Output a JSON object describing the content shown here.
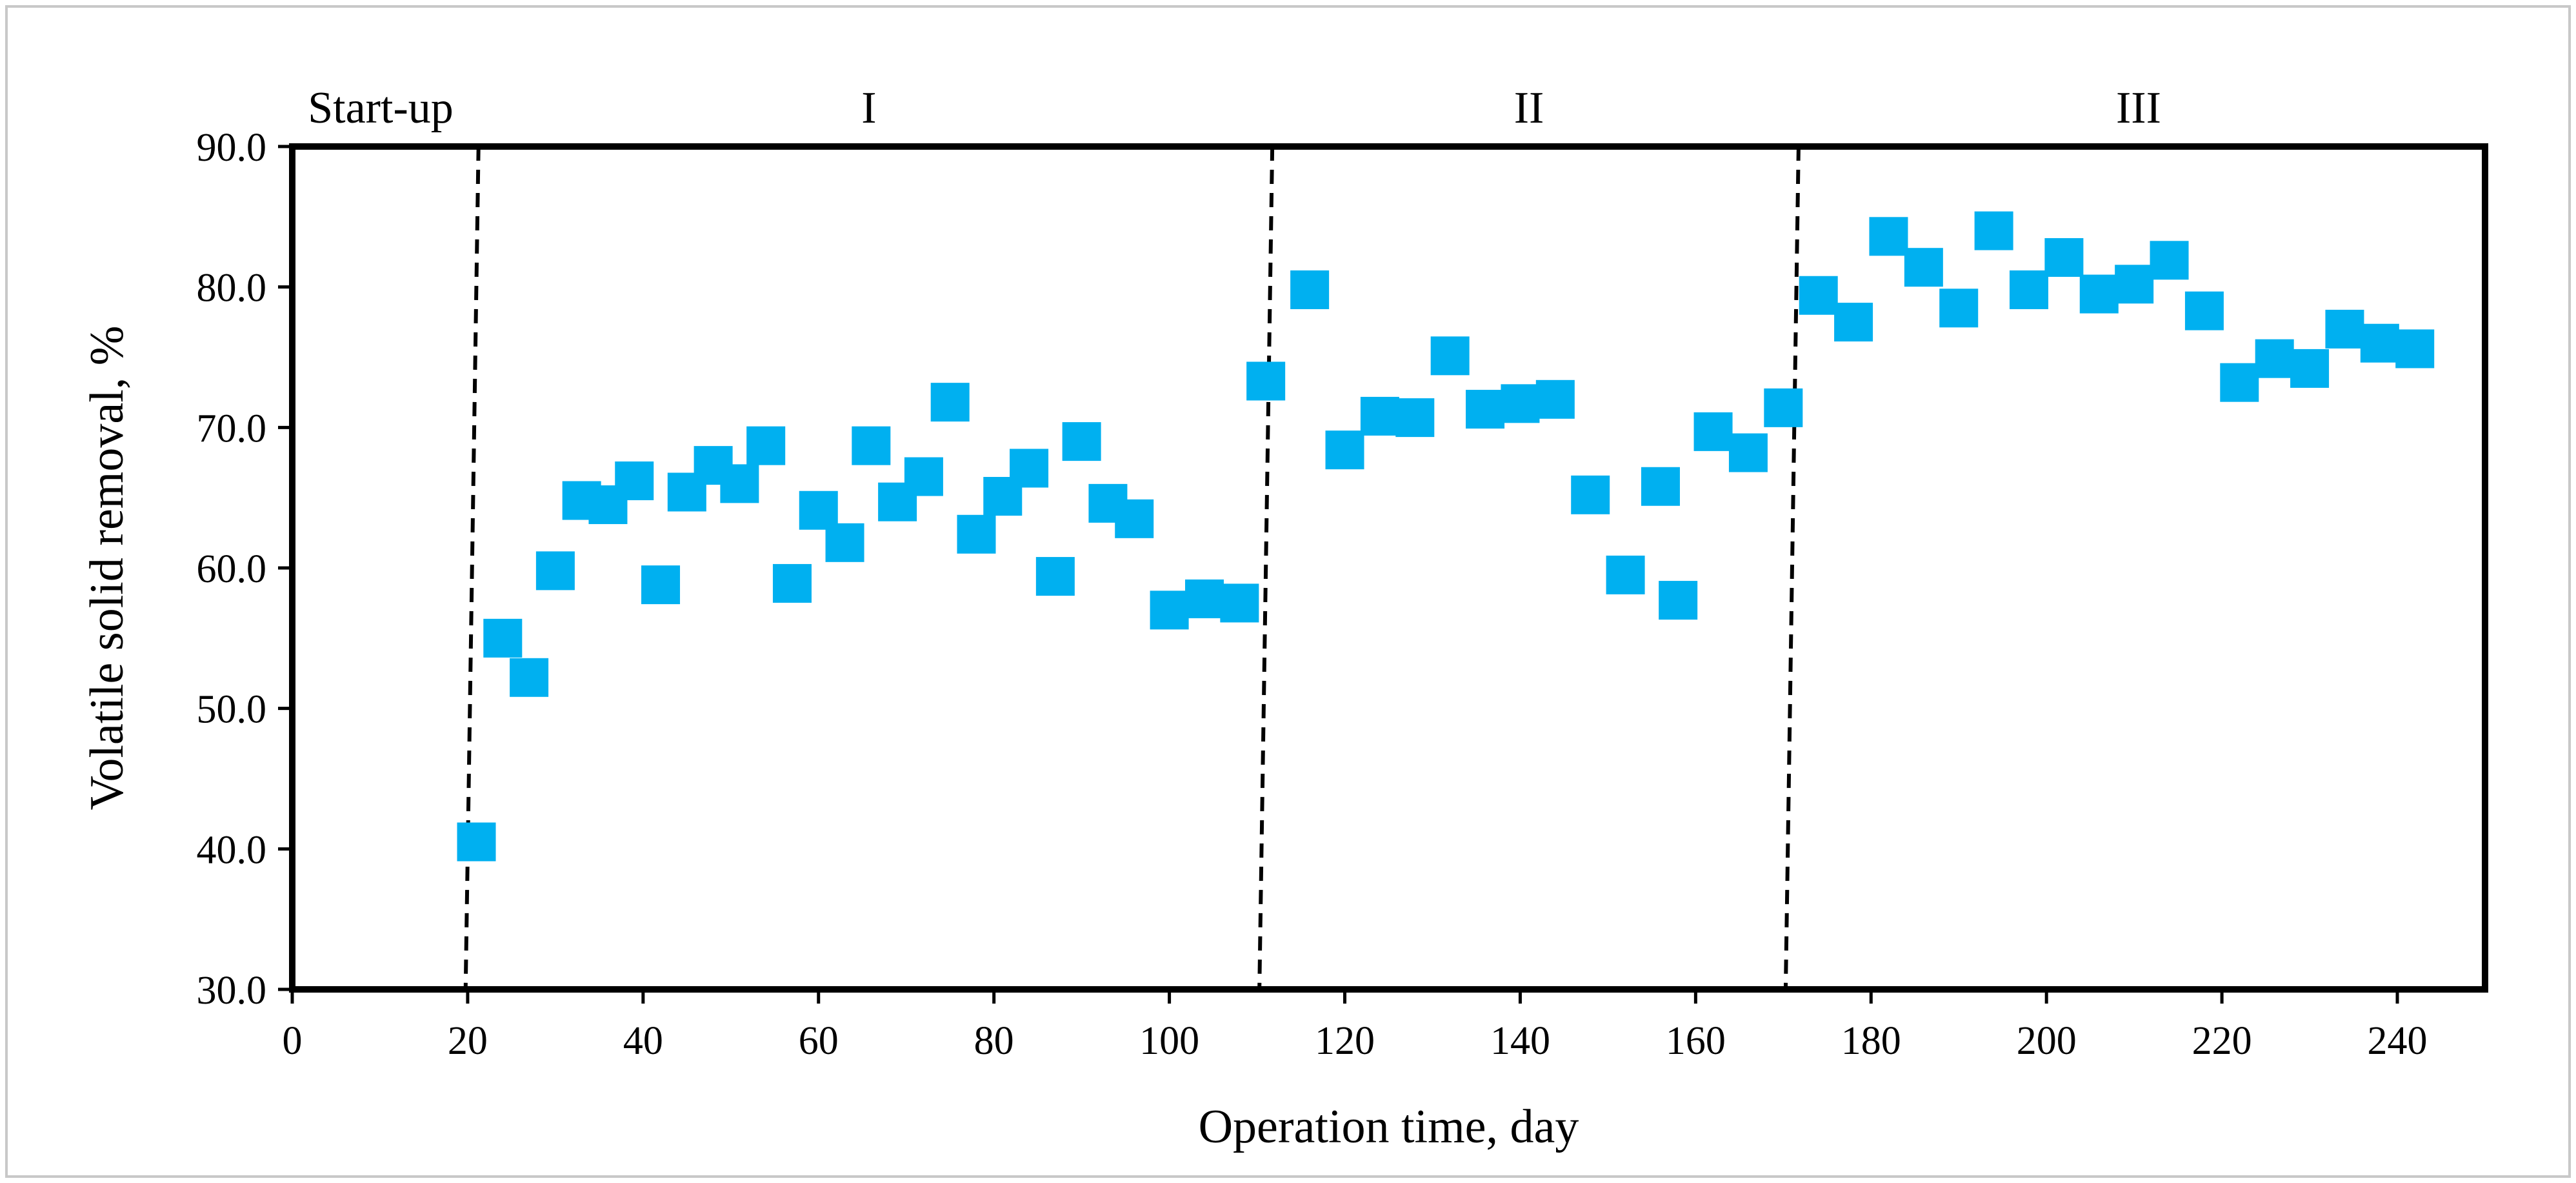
{
  "chart_data": {
    "type": "scatter",
    "xlabel": "Operation time, day",
    "ylabel": "Volatile solid removal, %",
    "xlim": [
      0,
      250
    ],
    "ylim": [
      30,
      90
    ],
    "x_ticks": [
      0,
      20,
      40,
      60,
      80,
      100,
      120,
      140,
      160,
      180,
      200,
      220,
      240
    ],
    "y_ticks": [
      30,
      40,
      50,
      60,
      70,
      80,
      90
    ],
    "x_tick_labels": [
      "0",
      "20",
      "40",
      "60",
      "80",
      "100",
      "120",
      "140",
      "160",
      "180",
      "200",
      "220",
      "240"
    ],
    "y_tick_labels": [
      "30.0",
      "40.0",
      "50.0",
      "60.0",
      "70.0",
      "80.0",
      "90.0"
    ],
    "marker": "square",
    "marker_color": "#00B0F0",
    "phase_dividers": [
      20.5,
      111,
      171
    ],
    "phases": [
      {
        "label": "Start-up",
        "x_start": 0,
        "x_end": 20.5
      },
      {
        "label": "I",
        "x_start": 20.5,
        "x_end": 111
      },
      {
        "label": "II",
        "x_start": 111,
        "x_end": 171
      },
      {
        "label": "III",
        "x_start": 171,
        "x_end": 250
      }
    ],
    "series": [
      {
        "name": "Volatile solid removal",
        "x": [
          21,
          24,
          27,
          30,
          33,
          36,
          39,
          42,
          45,
          48,
          51,
          54,
          57,
          60,
          63,
          66,
          69,
          72,
          75,
          78,
          81,
          84,
          87,
          90,
          93,
          96,
          100,
          104,
          108,
          111,
          116,
          120,
          124,
          128,
          132,
          136,
          140,
          144,
          148,
          152,
          156,
          158,
          162,
          166,
          170,
          174,
          178,
          182,
          186,
          190,
          194,
          198,
          202,
          206,
          210,
          214,
          218,
          222,
          226,
          230,
          234,
          238,
          242
        ],
        "y": [
          40.5,
          55.0,
          52.2,
          59.8,
          64.8,
          64.5,
          66.2,
          58.8,
          65.4,
          67.3,
          66.0,
          68.7,
          58.9,
          64.1,
          61.8,
          68.7,
          64.7,
          66.5,
          71.8,
          62.4,
          65.1,
          67.1,
          59.4,
          69.0,
          64.6,
          63.5,
          57.0,
          57.8,
          57.5,
          73.3,
          79.8,
          68.4,
          70.8,
          70.7,
          75.1,
          71.3,
          71.7,
          72.0,
          65.2,
          59.5,
          65.8,
          57.7,
          69.7,
          68.2,
          71.4,
          79.4,
          77.5,
          83.6,
          81.4,
          78.5,
          84.0,
          79.8,
          82.1,
          79.5,
          80.2,
          81.9,
          78.3,
          73.2,
          74.9,
          74.2,
          77.0,
          76.0,
          75.6
        ]
      }
    ]
  }
}
